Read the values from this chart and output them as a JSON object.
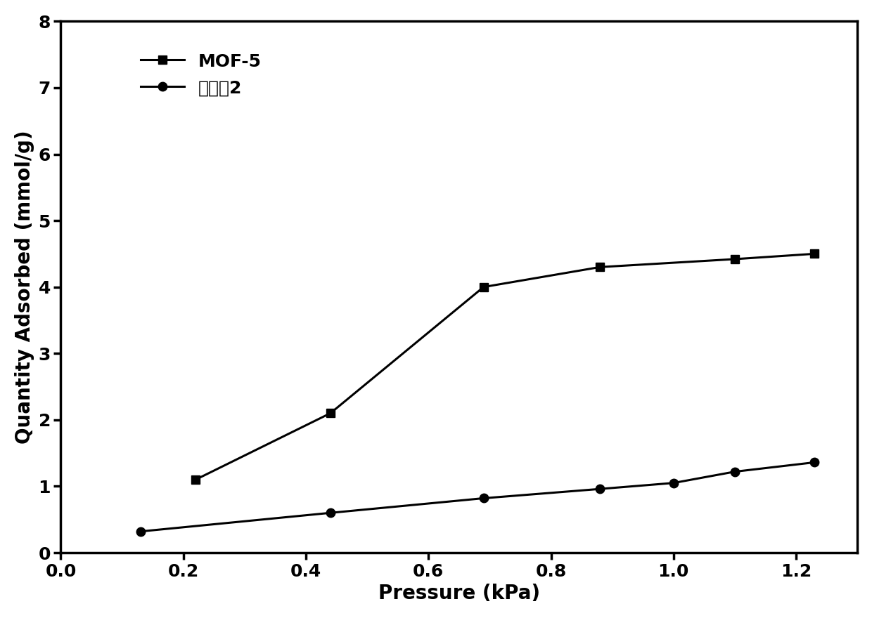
{
  "mof5_x": [
    0.22,
    0.44,
    0.69,
    0.88,
    1.1,
    1.23
  ],
  "mof5_y": [
    1.1,
    2.1,
    4.0,
    4.3,
    4.42,
    4.5
  ],
  "example2_x": [
    0.13,
    0.44,
    0.69,
    0.88,
    1.0,
    1.1,
    1.23
  ],
  "example2_y": [
    0.32,
    0.6,
    0.82,
    0.96,
    1.05,
    1.22,
    1.36
  ],
  "xlabel": "Pressure (kPa)",
  "ylabel": "Quantity Adsorbed (mmol/g)",
  "xlim": [
    0.0,
    1.3
  ],
  "ylim": [
    0,
    8
  ],
  "xticks": [
    0.0,
    0.2,
    0.4,
    0.6,
    0.8,
    1.0,
    1.2
  ],
  "yticks": [
    0,
    1,
    2,
    3,
    4,
    5,
    6,
    7,
    8
  ],
  "legend_mof5": "MOF-5",
  "legend_example2": "实施例2",
  "line_color": "#000000",
  "marker_square": "s",
  "marker_circle": "o",
  "markersize": 9,
  "linewidth": 2.2,
  "fontsize_label": 20,
  "fontsize_tick": 18,
  "fontsize_legend": 18,
  "background_color": "#ffffff"
}
